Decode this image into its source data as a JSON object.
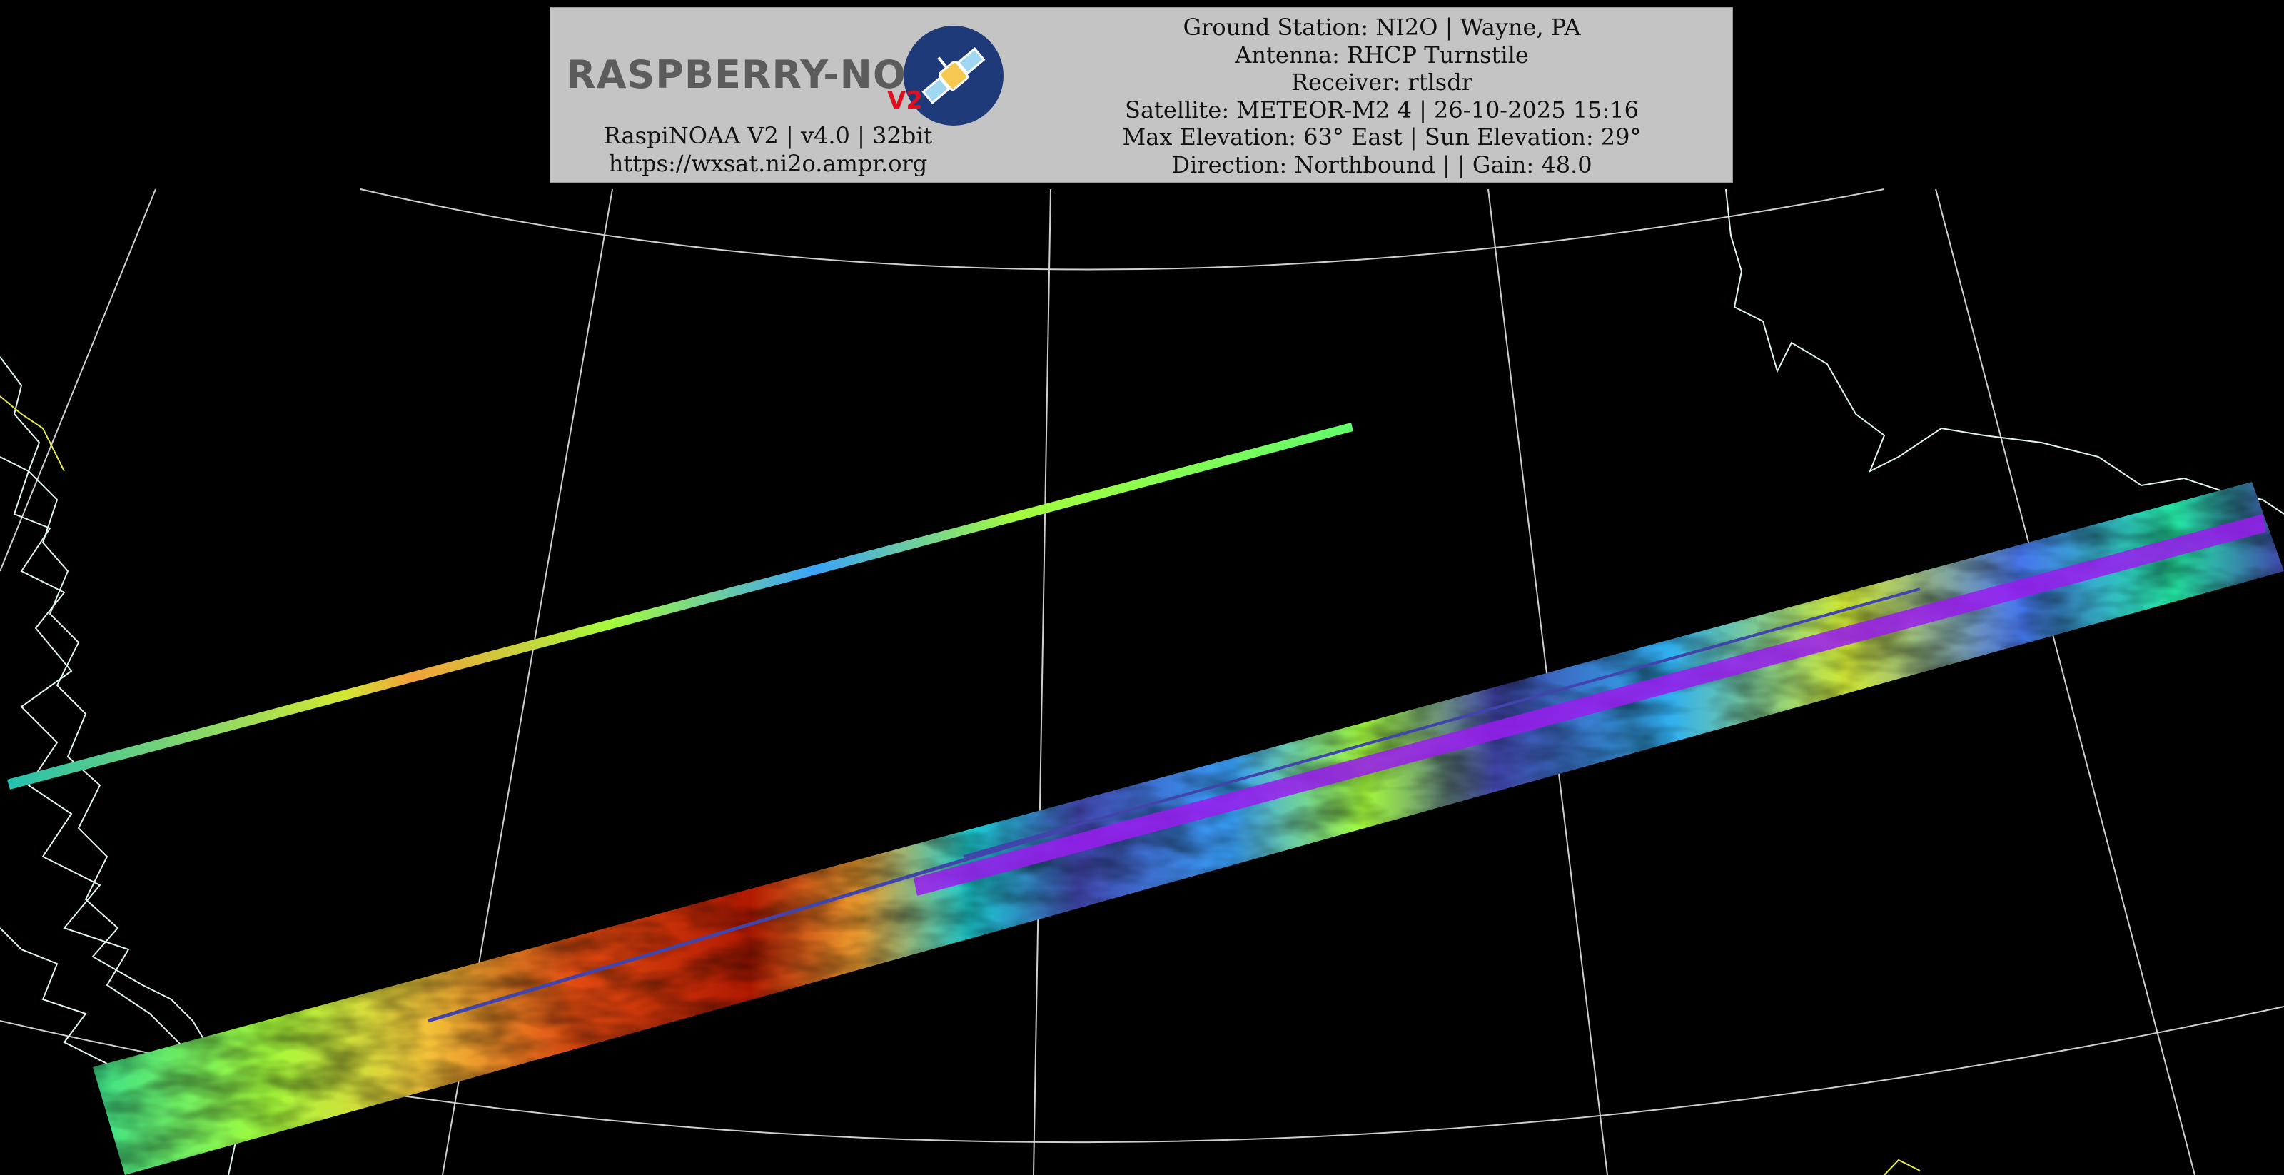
{
  "header": {
    "logo": {
      "wordmark": "RASPBERRY-NOAA",
      "version_badge": "V2",
      "icon": "satellite-icon"
    },
    "left_lines": [
      "RaspiNOAA V2 | v4.0 | 32bit",
      "https://wxsat.ni2o.ampr.org"
    ],
    "right_lines": [
      "Ground Station: NI2O | Wayne, PA",
      "Antenna: RHCP Turnstile",
      "Receiver: rtlsdr",
      "Satellite: METEOR-M2 4 | 26-10-2025 15:16",
      "Max Elevation: 63° East | Sun Elevation: 29°",
      "Direction: Northbound | | Gain: 48.0"
    ]
  },
  "map": {
    "background": "#000000",
    "graticule_color": "#d0d0d0",
    "coastline_color": "#dff5ee",
    "border_color": "#e8e850",
    "palette": [
      "#30123b",
      "#4145ab",
      "#4675ed",
      "#39a2fc",
      "#1bcfd4",
      "#24eca6",
      "#61fc6c",
      "#a4fc3b",
      "#d1e834",
      "#f3c63a",
      "#fe9b2d",
      "#f36315",
      "#d93806",
      "#b11901",
      "#7a0403"
    ],
    "overlay_color": "#9a1cf0"
  }
}
